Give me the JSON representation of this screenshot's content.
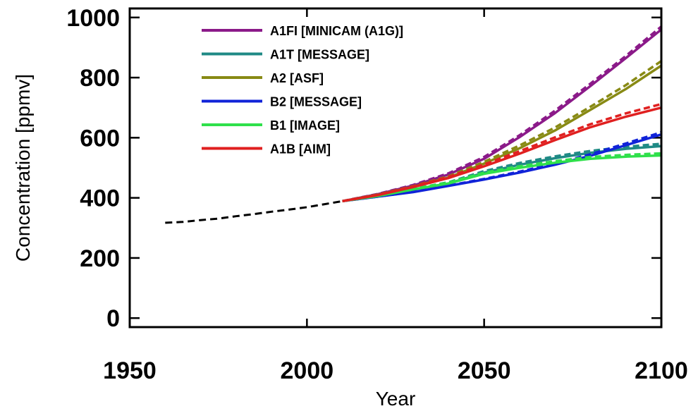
{
  "chart_data": {
    "type": "line",
    "title": "",
    "xlabel": "Year",
    "ylabel": "Concentration [ppmv]",
    "xlim": [
      1950,
      2100
    ],
    "ylim": [
      -30,
      1030
    ],
    "xticks": [
      1950,
      2000,
      2050,
      2100
    ],
    "yticks": [
      0,
      200,
      400,
      600,
      800,
      1000
    ],
    "grid": false,
    "legend": "top-left",
    "historical": {
      "style": "dashed",
      "color": "#000000",
      "x": [
        1960,
        1965,
        1970,
        1975,
        1980,
        1985,
        1990,
        1995,
        2000,
        2005,
        2010
      ],
      "values": [
        317,
        320,
        326,
        331,
        339,
        346,
        354,
        361,
        369,
        379,
        389
      ]
    },
    "series": [
      {
        "name": "A1FI [MINICAM (A1G)]",
        "color": "#8b1a89",
        "x": [
          2010,
          2020,
          2030,
          2040,
          2050,
          2060,
          2070,
          2080,
          2090,
          2100
        ],
        "solid": [
          389,
          412,
          441,
          478,
          530,
          602,
          682,
          772,
          865,
          960
        ],
        "dashed": [
          389,
          413,
          443,
          482,
          536,
          608,
          690,
          780,
          872,
          970
        ]
      },
      {
        "name": "A1T [MESSAGE]",
        "color": "#1f8a85",
        "x": [
          2010,
          2020,
          2030,
          2040,
          2050,
          2060,
          2070,
          2080,
          2090,
          2100
        ],
        "solid": [
          389,
          407,
          428,
          448,
          484,
          510,
          532,
          550,
          563,
          572
        ],
        "dashed": [
          389,
          408,
          430,
          452,
          489,
          516,
          538,
          556,
          570,
          580
        ]
      },
      {
        "name": "A2 [ASF]",
        "color": "#888a14",
        "x": [
          2010,
          2020,
          2030,
          2040,
          2050,
          2060,
          2070,
          2080,
          2090,
          2100
        ],
        "solid": [
          389,
          410,
          437,
          468,
          514,
          565,
          624,
          693,
          762,
          840
        ],
        "dashed": [
          389,
          411,
          439,
          472,
          520,
          574,
          634,
          703,
          775,
          855
        ]
      },
      {
        "name": "B2 [MESSAGE]",
        "color": "#1023d8",
        "x": [
          2010,
          2020,
          2030,
          2040,
          2050,
          2060,
          2070,
          2080,
          2090,
          2100
        ],
        "solid": [
          389,
          404,
          419,
          440,
          461,
          484,
          510,
          540,
          575,
          611
        ],
        "dashed": [
          389,
          404,
          420,
          441,
          463,
          487,
          514,
          545,
          581,
          618
        ]
      },
      {
        "name": "B1 [IMAGE]",
        "color": "#2fe04b",
        "x": [
          2010,
          2020,
          2030,
          2040,
          2050,
          2060,
          2070,
          2080,
          2090,
          2100
        ],
        "solid": [
          389,
          406,
          428,
          448,
          480,
          500,
          517,
          530,
          537,
          541
        ],
        "dashed": [
          389,
          407,
          430,
          451,
          484,
          505,
          522,
          536,
          543,
          548
        ]
      },
      {
        "name": "A1B [AIM]",
        "color": "#e02020",
        "x": [
          2010,
          2020,
          2030,
          2040,
          2050,
          2060,
          2070,
          2080,
          2090,
          2100
        ],
        "solid": [
          389,
          409,
          436,
          466,
          505,
          547,
          592,
          635,
          670,
          700
        ],
        "dashed": [
          389,
          410,
          438,
          470,
          511,
          555,
          601,
          645,
          681,
          712
        ]
      }
    ]
  }
}
